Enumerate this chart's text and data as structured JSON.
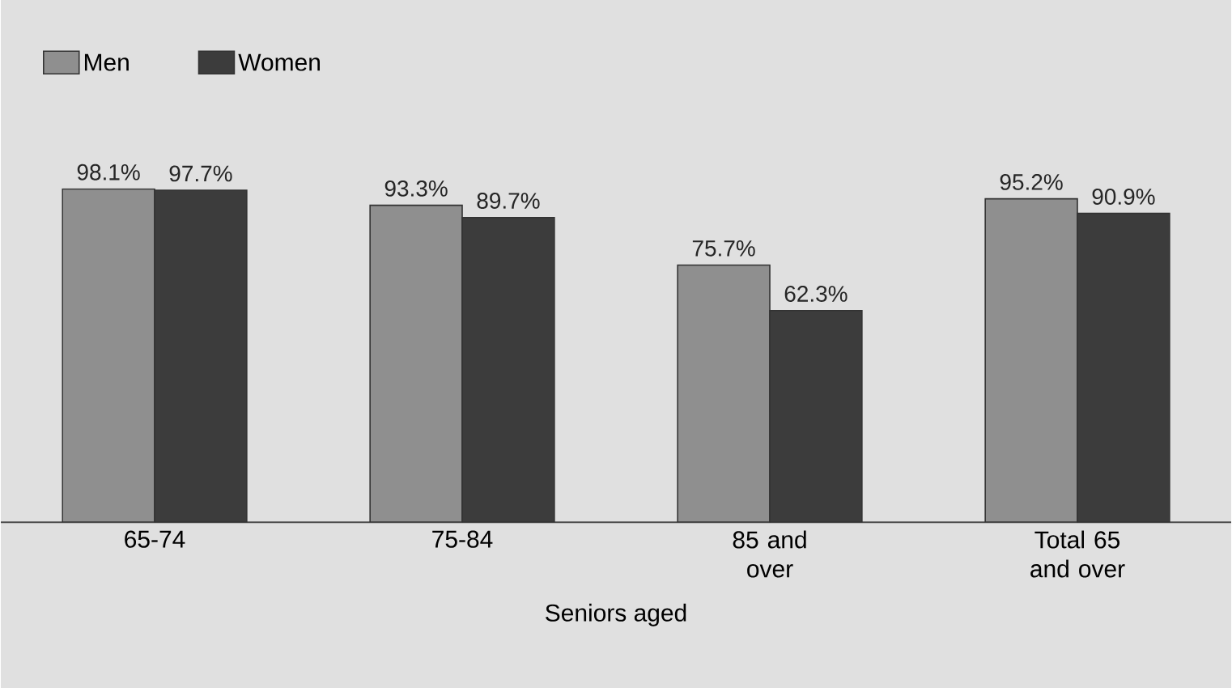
{
  "chart_data": {
    "type": "bar",
    "xlabel": "Seniors aged",
    "categories": [
      "65-74",
      "75-84",
      "85 and over",
      "Total 65 and over"
    ],
    "series": [
      {
        "name": "Men",
        "color": "#8f8f8f",
        "values": [
          98.1,
          93.3,
          75.7,
          95.2
        ],
        "value_labels": [
          "98.1%",
          "93.3%",
          "75.7%",
          "95.2%"
        ]
      },
      {
        "name": "Women",
        "color": "#3c3c3c",
        "values": [
          97.7,
          89.7,
          62.3,
          90.9
        ],
        "value_labels": [
          "97.7%",
          "89.7%",
          "62.3%",
          "90.9%"
        ]
      }
    ],
    "legend": "top left"
  }
}
